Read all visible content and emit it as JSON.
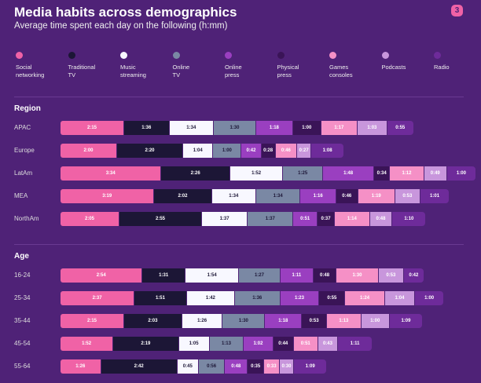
{
  "chart_data": {
    "type": "bar",
    "orientation": "horizontal-stacked",
    "title": "Media habits across demographics",
    "subtitle": "Average time spent each day on the following (h:mm)",
    "badge": "3",
    "series": [
      {
        "name": "Social networking",
        "lines": [
          "Social",
          "networking"
        ],
        "color": "#f062a6",
        "dark_text": false
      },
      {
        "name": "Traditional TV",
        "lines": [
          "Traditional",
          "TV"
        ],
        "color": "#1c1636",
        "dark_text": false
      },
      {
        "name": "Music streaming",
        "lines": [
          "Music",
          "streaming"
        ],
        "color": "#f8f8ff",
        "dark_text": true
      },
      {
        "name": "Online TV",
        "lines": [
          "Online",
          "TV"
        ],
        "color": "#7a88a4",
        "dark_text": true
      },
      {
        "name": "Online press",
        "lines": [
          "Online",
          "press"
        ],
        "color": "#9a3fc0",
        "dark_text": false
      },
      {
        "name": "Physical press",
        "lines": [
          "Physical",
          "press"
        ],
        "color": "#3a1457",
        "dark_text": false
      },
      {
        "name": "Games consoles",
        "lines": [
          "Games",
          "consoles"
        ],
        "color": "#f590c6",
        "dark_text": false
      },
      {
        "name": "Podcasts",
        "lines": [
          "Podcasts"
        ],
        "color": "#c896dc",
        "dark_text": false
      },
      {
        "name": "Radio",
        "lines": [
          "Radio"
        ],
        "color": "#6e2b9a",
        "dark_text": false
      }
    ],
    "groups": [
      {
        "name": "Region",
        "rows": [
          {
            "label": "APAC",
            "values": [
              "2:15",
              "1:36",
              "1:34",
              "1:30",
              "1:18",
              "1:00",
              "1:17",
              "1:03",
              "0:55"
            ]
          },
          {
            "label": "Europe",
            "values": [
              "2:00",
              "2:20",
              "1:04",
              "1:00",
              "0:42",
              "0:28",
              "0:46",
              "0:27",
              "1:08"
            ]
          },
          {
            "label": "LatAm",
            "values": [
              "3:34",
              "2:26",
              "1:52",
              "1:25",
              "1:48",
              "0:34",
              "1:12",
              "0:49",
              "1:00"
            ]
          },
          {
            "label": "MEA",
            "values": [
              "3:19",
              "2:02",
              "1:34",
              "1:34",
              "1:16",
              "0:46",
              "1:19",
              "0:53",
              "1:01"
            ]
          },
          {
            "label": "NorthAm",
            "values": [
              "2:05",
              "2:55",
              "1:37",
              "1:37",
              "0:51",
              "0:37",
              "1:14",
              "0:48",
              "1:10"
            ]
          }
        ]
      },
      {
        "name": "Age",
        "rows": [
          {
            "label": "16-24",
            "values": [
              "2:54",
              "1:31",
              "1:54",
              "1:27",
              "1:11",
              "0:48",
              "1:30",
              "0:53",
              "0:42"
            ]
          },
          {
            "label": "25-34",
            "values": [
              "2:37",
              "1:51",
              "1:42",
              "1:36",
              "1:23",
              "0:55",
              "1:24",
              "1:04",
              "1:00"
            ]
          },
          {
            "label": "35-44",
            "values": [
              "2:15",
              "2:03",
              "1:26",
              "1:30",
              "1:18",
              "0:53",
              "1:13",
              "1:00",
              "1:09"
            ]
          },
          {
            "label": "45-54",
            "values": [
              "1:52",
              "2:19",
              "1:05",
              "1:13",
              "1:02",
              "0:44",
              "0:51",
              "0:43",
              "1:11"
            ]
          },
          {
            "label": "55-64",
            "values": [
              "1:26",
              "2:42",
              "0:45",
              "0:56",
              "0:48",
              "0:35",
              "0:33",
              "0:30",
              "1:09"
            ]
          }
        ]
      }
    ]
  }
}
